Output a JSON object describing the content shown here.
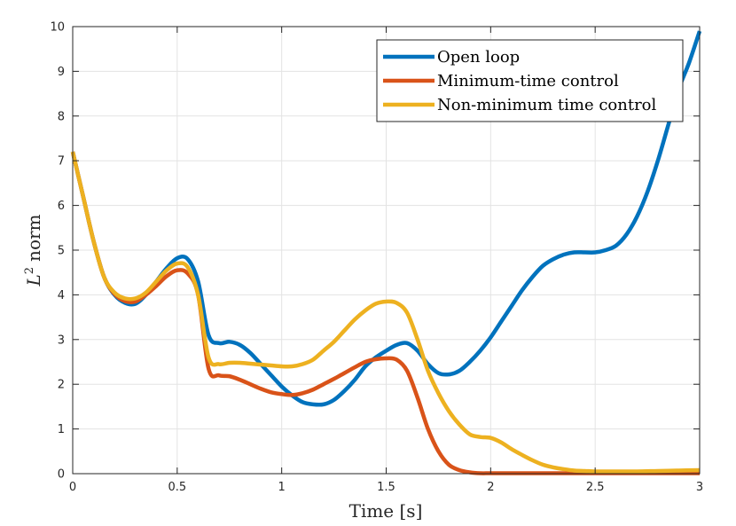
{
  "chart_data": {
    "type": "line",
    "title": "",
    "xlabel": "Time [s]",
    "ylabel_main": "L",
    "ylabel_sup": "2",
    "ylabel_rest": "norm",
    "xlim": [
      0,
      3
    ],
    "ylim": [
      0,
      10
    ],
    "grid": true,
    "legend_position": "top-right",
    "x_ticks": [
      0,
      0.5,
      1,
      1.5,
      2,
      2.5,
      3
    ],
    "x_tick_labels": [
      "0",
      "0.5",
      "1",
      "1.5",
      "2",
      "2.5",
      "3"
    ],
    "y_ticks": [
      0,
      1,
      2,
      3,
      4,
      5,
      6,
      7,
      8,
      9,
      10
    ],
    "y_tick_labels": [
      "0",
      "1",
      "2",
      "3",
      "4",
      "5",
      "6",
      "7",
      "8",
      "9",
      "10"
    ],
    "series": [
      {
        "name": "Open loop",
        "color": "#0072BD",
        "x": [
          0,
          0.05,
          0.1,
          0.15,
          0.2,
          0.25,
          0.3,
          0.35,
          0.4,
          0.45,
          0.5,
          0.55,
          0.6,
          0.65,
          0.7,
          0.75,
          0.8,
          0.85,
          0.9,
          0.95,
          1.0,
          1.05,
          1.1,
          1.15,
          1.2,
          1.25,
          1.3,
          1.35,
          1.4,
          1.45,
          1.5,
          1.55,
          1.6,
          1.65,
          1.7,
          1.75,
          1.8,
          1.85,
          1.9,
          1.95,
          2.0,
          2.05,
          2.1,
          2.15,
          2.2,
          2.25,
          2.3,
          2.35,
          2.4,
          2.45,
          2.5,
          2.55,
          2.6,
          2.65,
          2.7,
          2.75,
          2.8,
          2.85,
          2.9,
          2.95,
          3.0
        ],
        "values": [
          7.2,
          6.2,
          5.2,
          4.4,
          4.0,
          3.82,
          3.8,
          4.0,
          4.3,
          4.6,
          4.82,
          4.8,
          4.3,
          3.1,
          2.92,
          2.95,
          2.88,
          2.7,
          2.45,
          2.2,
          1.95,
          1.75,
          1.6,
          1.55,
          1.55,
          1.65,
          1.85,
          2.1,
          2.4,
          2.6,
          2.75,
          2.88,
          2.92,
          2.75,
          2.45,
          2.25,
          2.22,
          2.3,
          2.5,
          2.75,
          3.05,
          3.4,
          3.75,
          4.1,
          4.4,
          4.65,
          4.8,
          4.9,
          4.95,
          4.95,
          4.95,
          5.0,
          5.1,
          5.35,
          5.75,
          6.3,
          7.0,
          7.8,
          8.6,
          9.2,
          9.9
        ]
      },
      {
        "name": "Minimum-time control",
        "color": "#D95319",
        "x": [
          0,
          0.05,
          0.1,
          0.15,
          0.2,
          0.25,
          0.3,
          0.35,
          0.4,
          0.45,
          0.5,
          0.55,
          0.6,
          0.65,
          0.7,
          0.75,
          0.8,
          0.85,
          0.9,
          0.95,
          1.0,
          1.05,
          1.1,
          1.15,
          1.2,
          1.25,
          1.3,
          1.35,
          1.4,
          1.45,
          1.5,
          1.55,
          1.6,
          1.65,
          1.7,
          1.75,
          1.8,
          1.85,
          1.9,
          1.95,
          2.0,
          2.1,
          2.2,
          2.3,
          2.4,
          2.5,
          2.6,
          2.7,
          2.8,
          2.9,
          3.0
        ],
        "values": [
          7.2,
          6.2,
          5.2,
          4.4,
          4.02,
          3.86,
          3.85,
          4.0,
          4.2,
          4.42,
          4.55,
          4.48,
          4.0,
          2.35,
          2.2,
          2.18,
          2.1,
          2.0,
          1.9,
          1.82,
          1.78,
          1.76,
          1.8,
          1.88,
          2.0,
          2.12,
          2.25,
          2.38,
          2.5,
          2.56,
          2.58,
          2.55,
          2.3,
          1.7,
          1.0,
          0.5,
          0.2,
          0.08,
          0.03,
          0.01,
          0.01,
          0.01,
          0.01,
          0.01,
          0.01,
          0.01,
          0.01,
          0.01,
          0.01,
          0.01,
          0.01
        ]
      },
      {
        "name": "Non-minimum time control",
        "color": "#EDB120",
        "x": [
          0,
          0.05,
          0.1,
          0.15,
          0.2,
          0.25,
          0.3,
          0.35,
          0.4,
          0.45,
          0.5,
          0.55,
          0.6,
          0.65,
          0.7,
          0.75,
          0.8,
          0.85,
          0.9,
          0.95,
          1.0,
          1.05,
          1.1,
          1.15,
          1.2,
          1.25,
          1.3,
          1.35,
          1.4,
          1.45,
          1.5,
          1.55,
          1.6,
          1.65,
          1.7,
          1.75,
          1.8,
          1.85,
          1.9,
          1.95,
          2.0,
          2.05,
          2.1,
          2.15,
          2.2,
          2.25,
          2.3,
          2.35,
          2.4,
          2.45,
          2.5,
          2.55,
          2.6,
          2.7,
          2.8,
          2.9,
          3.0
        ],
        "values": [
          7.2,
          6.2,
          5.2,
          4.4,
          4.05,
          3.92,
          3.92,
          4.05,
          4.3,
          4.55,
          4.7,
          4.62,
          4.0,
          2.6,
          2.45,
          2.48,
          2.48,
          2.46,
          2.44,
          2.42,
          2.4,
          2.4,
          2.45,
          2.55,
          2.75,
          2.95,
          3.2,
          3.45,
          3.65,
          3.8,
          3.85,
          3.82,
          3.6,
          3.0,
          2.3,
          1.8,
          1.4,
          1.1,
          0.88,
          0.82,
          0.8,
          0.7,
          0.55,
          0.42,
          0.3,
          0.2,
          0.14,
          0.1,
          0.07,
          0.06,
          0.05,
          0.05,
          0.05,
          0.05,
          0.06,
          0.07,
          0.08
        ]
      }
    ]
  }
}
